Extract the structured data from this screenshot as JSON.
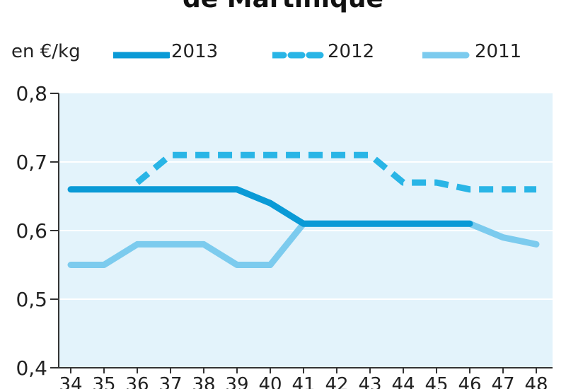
{
  "chart_data": {
    "type": "line",
    "title": "de Martinique",
    "ylabel": "en €/kg",
    "xlabel": "",
    "categories": [
      "34",
      "35",
      "36",
      "37",
      "38",
      "39",
      "40",
      "41",
      "42",
      "43",
      "44",
      "45",
      "46",
      "47",
      "48"
    ],
    "ylim": [
      0.4,
      0.8
    ],
    "yticks": [
      "0,4",
      "0,5",
      "0,6",
      "0,7",
      "0,8"
    ],
    "grid": "horizontal",
    "legend_placement": "top",
    "series": [
      {
        "name": "2013",
        "style": "solid",
        "color": "#0a9ad6",
        "values": [
          0.66,
          0.66,
          0.66,
          0.66,
          0.66,
          0.66,
          0.64,
          0.61,
          0.61,
          0.61,
          0.61,
          0.61,
          0.61,
          null,
          null
        ]
      },
      {
        "name": "2012",
        "style": "dashed",
        "color": "#29b5e6",
        "values": [
          null,
          null,
          0.67,
          0.71,
          0.71,
          0.71,
          0.71,
          0.71,
          0.71,
          0.71,
          0.67,
          0.67,
          0.66,
          0.66,
          0.66
        ]
      },
      {
        "name": "2011",
        "style": "solid",
        "color": "#7ccbee",
        "values": [
          0.55,
          0.55,
          0.58,
          0.58,
          0.58,
          0.55,
          0.55,
          0.61,
          0.61,
          0.61,
          0.61,
          0.61,
          0.61,
          0.59,
          0.58
        ]
      }
    ]
  },
  "colors": {
    "plot_background": "#e3f3fb",
    "grid": "#ffffff",
    "axis": "#333333"
  }
}
